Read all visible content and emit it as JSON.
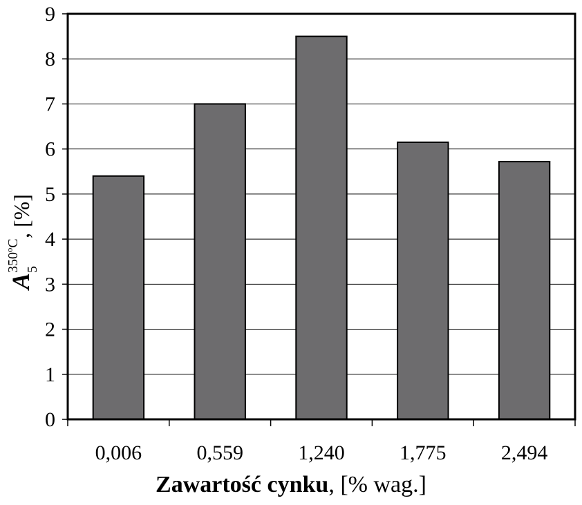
{
  "chart_data": {
    "type": "bar",
    "categories": [
      "0,006",
      "0,559",
      "1,240",
      "1,775",
      "2,494"
    ],
    "values": [
      5.4,
      7.0,
      8.5,
      6.15,
      5.72
    ],
    "ylim": [
      0,
      9
    ],
    "yticks": [
      "0",
      "1",
      "2",
      "3",
      "4",
      "5",
      "6",
      "7",
      "8",
      "9"
    ],
    "xlabel_bold": "Zawartość cynku",
    "xlabel_rest": ", [% wag.]",
    "ylabel_symbol": "A",
    "ylabel_sub": "5",
    "ylabel_sup": "350ºC",
    "ylabel_rest": ", [%]",
    "grid": true,
    "colors": {
      "bar": "#6d6c6e",
      "axis": "#000000",
      "grid": "#000000"
    }
  }
}
